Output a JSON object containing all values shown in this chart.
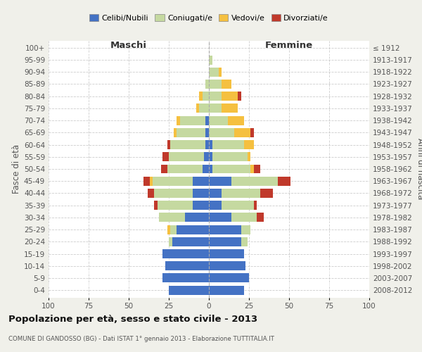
{
  "age_groups": [
    "100+",
    "95-99",
    "90-94",
    "85-89",
    "80-84",
    "75-79",
    "70-74",
    "65-69",
    "60-64",
    "55-59",
    "50-54",
    "45-49",
    "40-44",
    "35-39",
    "30-34",
    "25-29",
    "20-24",
    "15-19",
    "10-14",
    "5-9",
    "0-4"
  ],
  "birth_years": [
    "≤ 1912",
    "1913-1917",
    "1918-1922",
    "1923-1927",
    "1928-1932",
    "1933-1937",
    "1938-1942",
    "1943-1947",
    "1948-1952",
    "1953-1957",
    "1958-1962",
    "1963-1967",
    "1968-1972",
    "1973-1977",
    "1978-1982",
    "1983-1987",
    "1988-1992",
    "1993-1997",
    "1998-2002",
    "2003-2007",
    "2008-2012"
  ],
  "male": {
    "celibi": [
      0,
      0,
      0,
      0,
      0,
      0,
      2,
      2,
      2,
      3,
      4,
      10,
      10,
      10,
      15,
      20,
      23,
      29,
      27,
      29,
      25
    ],
    "coniugati": [
      0,
      0,
      0,
      2,
      4,
      6,
      16,
      18,
      22,
      22,
      22,
      25,
      24,
      22,
      16,
      4,
      2,
      0,
      0,
      0,
      0
    ],
    "vedovi": [
      0,
      0,
      0,
      0,
      2,
      2,
      2,
      2,
      0,
      0,
      0,
      2,
      0,
      0,
      0,
      2,
      0,
      0,
      0,
      0,
      0
    ],
    "divorziati": [
      0,
      0,
      0,
      0,
      0,
      0,
      0,
      0,
      2,
      4,
      4,
      4,
      4,
      2,
      0,
      0,
      0,
      0,
      0,
      0,
      0
    ]
  },
  "female": {
    "nubili": [
      0,
      0,
      0,
      0,
      0,
      0,
      0,
      0,
      2,
      2,
      2,
      14,
      8,
      8,
      14,
      20,
      20,
      22,
      23,
      25,
      22
    ],
    "coniugate": [
      0,
      2,
      6,
      8,
      8,
      8,
      12,
      16,
      20,
      22,
      24,
      29,
      24,
      20,
      16,
      6,
      4,
      0,
      0,
      0,
      0
    ],
    "vedove": [
      0,
      0,
      2,
      6,
      10,
      10,
      10,
      10,
      6,
      2,
      2,
      0,
      0,
      0,
      0,
      0,
      0,
      0,
      0,
      0,
      0
    ],
    "divorziate": [
      0,
      0,
      0,
      0,
      2,
      0,
      0,
      2,
      0,
      0,
      4,
      8,
      8,
      2,
      4,
      0,
      0,
      0,
      0,
      0,
      0
    ]
  },
  "colors": {
    "celibi": "#4472C4",
    "coniugati": "#C5D9A0",
    "vedovi": "#F5C040",
    "divorziati": "#C0392B"
  },
  "legend_labels": [
    "Celibi/Nubili",
    "Coniugati/e",
    "Vedovi/e",
    "Divorziati/e"
  ],
  "title": "Popolazione per età, sesso e stato civile - 2013",
  "subtitle": "COMUNE DI GANDOSSO (BG) - Dati ISTAT 1° gennaio 2013 - Elaborazione TUTTITALIA.IT",
  "label_maschi": "Maschi",
  "label_femmine": "Femmine",
  "ylabel_left": "Fasce di età",
  "ylabel_right": "Anni di nascita",
  "xlim": 100,
  "bg_color": "#f0f0ea",
  "bar_bg": "#ffffff",
  "maschi_color": "#333333",
  "femmine_color": "#333333"
}
